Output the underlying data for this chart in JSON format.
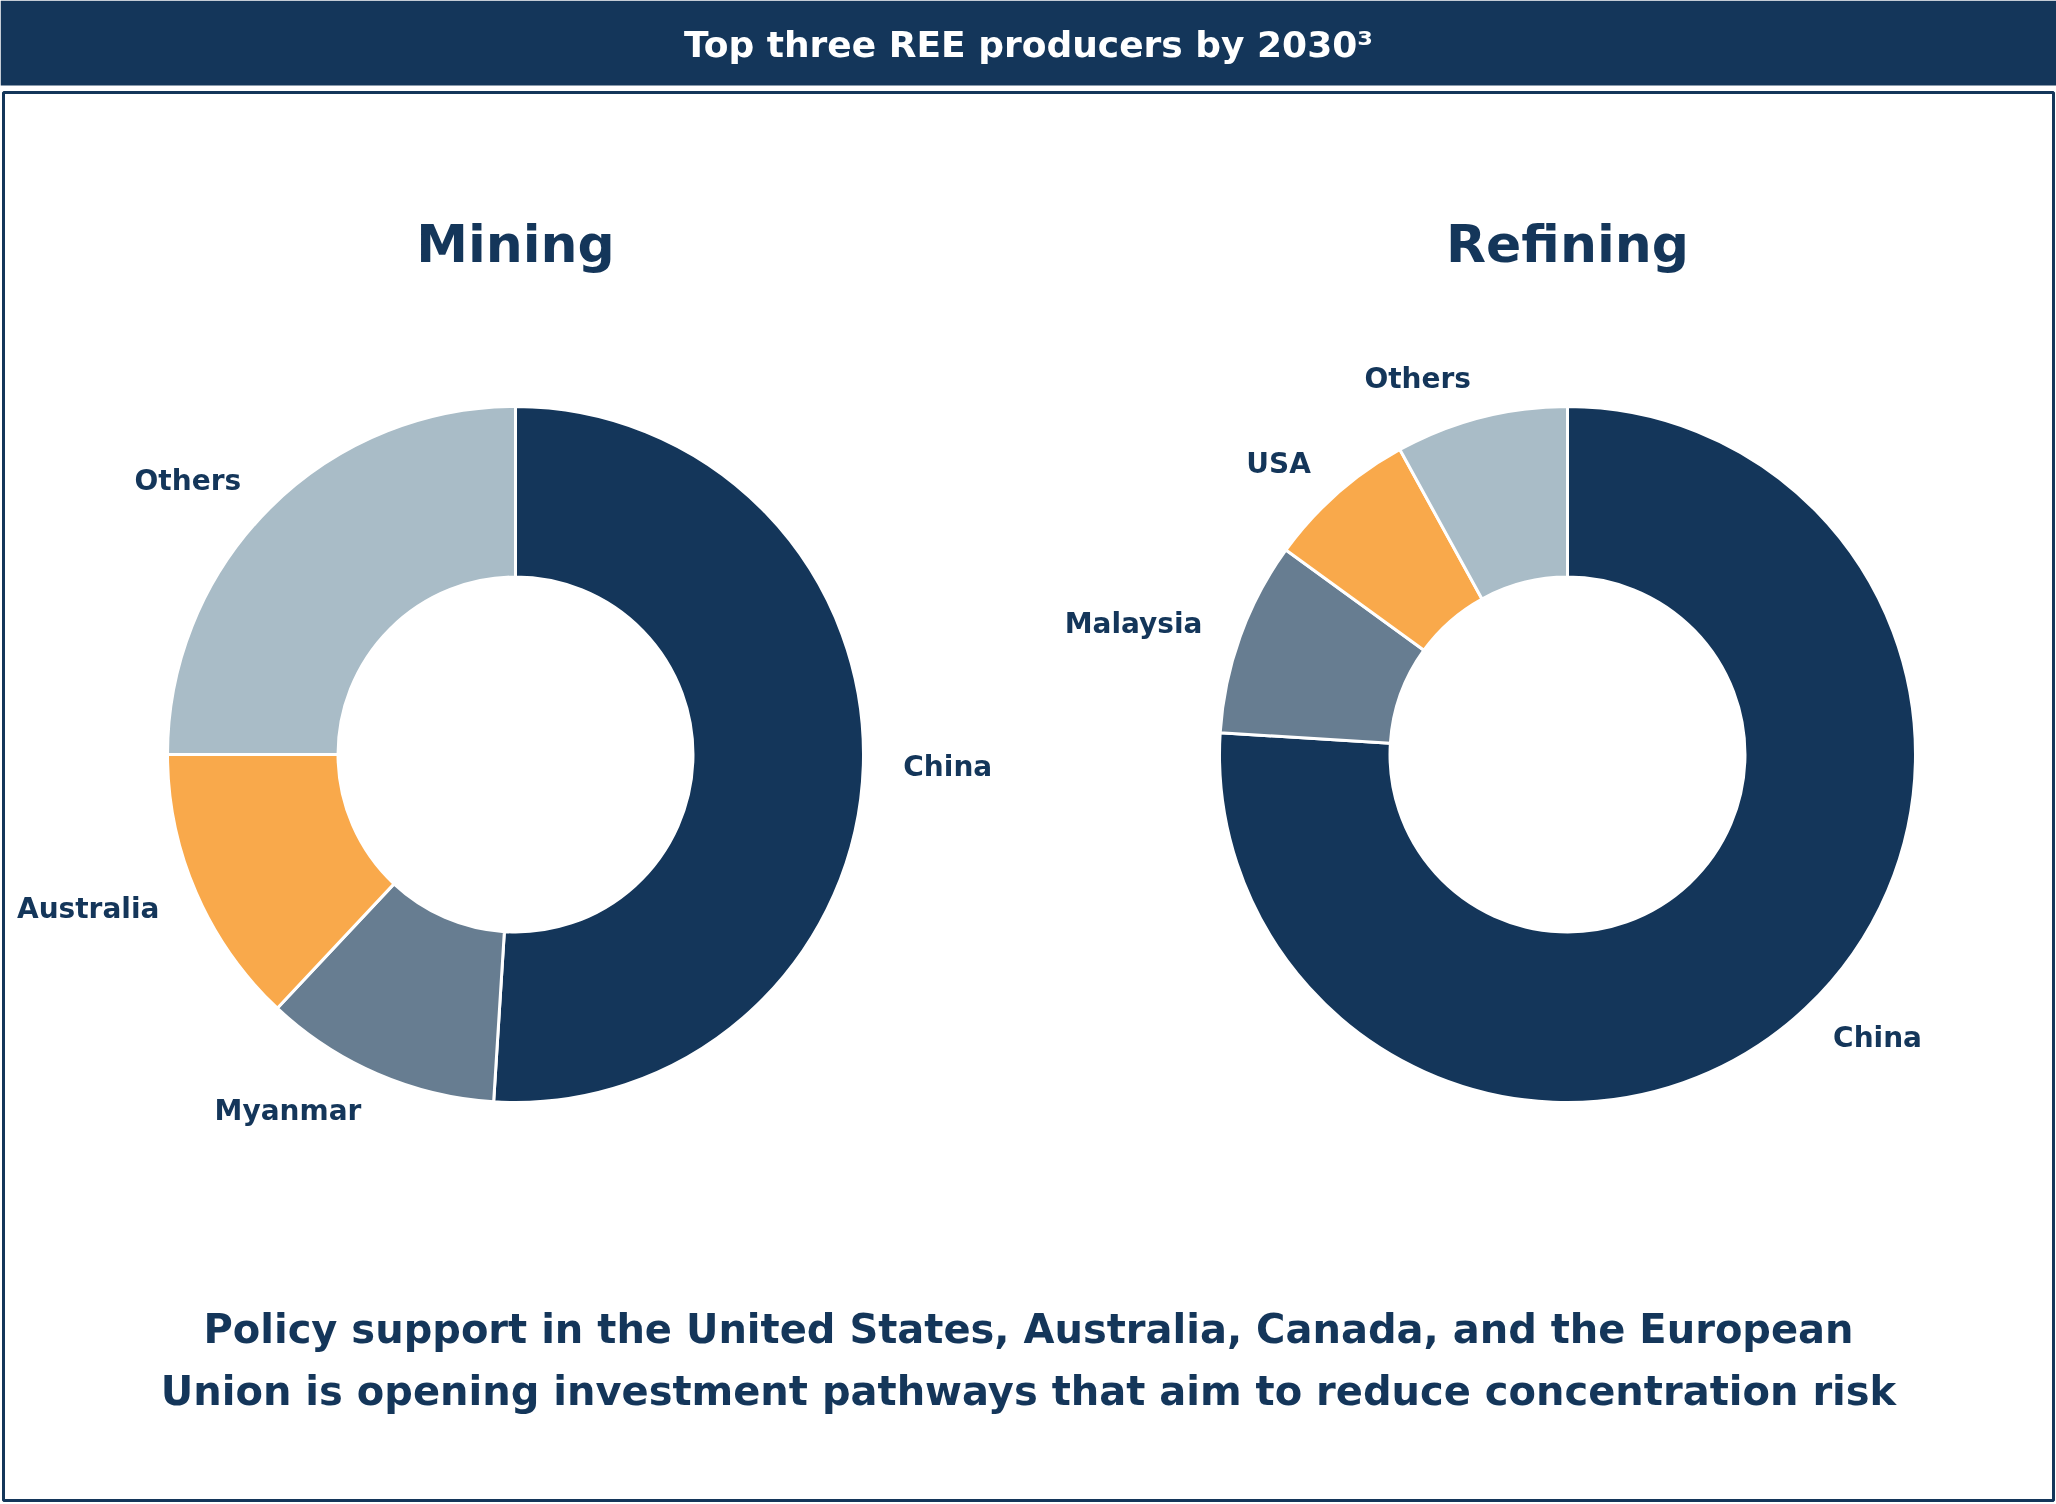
{
  "chart_data": [
    {
      "type": "other",
      "title": "Top three REE producers by 2030³"
    },
    {
      "type": "donut",
      "title": "Mining",
      "categories": [
        "China",
        "Myanmar",
        "Australia",
        "Others"
      ],
      "values": [
        51,
        11,
        13,
        25
      ],
      "colors": [
        "#14365a",
        "#677d91",
        "#f9a94b",
        "#a9bcc7"
      ]
    },
    {
      "type": "donut",
      "title": "Refining",
      "categories": [
        "China",
        "Malaysia",
        "USA",
        "Others"
      ],
      "values": [
        76,
        9,
        7,
        8
      ],
      "colors": [
        "#14365a",
        "#677d91",
        "#f9a94b",
        "#a9bcc7"
      ]
    },
    {
      "type": "other",
      "annotations": [
        "Policy support in the United States, Australia, Canada, and the European\nUnion is opening investment pathways that aim to reduce concentration risk"
      ]
    }
  ]
}
